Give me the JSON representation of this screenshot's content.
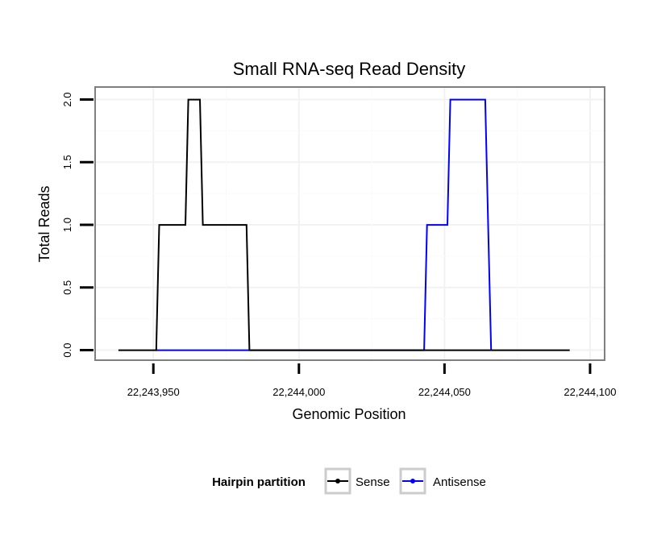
{
  "chart_data": {
    "type": "line",
    "title": "Small RNA-seq Read Density",
    "xlabel": "Genomic Position",
    "ylabel": "Total Reads",
    "xlim": [
      22243930,
      22244105
    ],
    "ylim": [
      -0.08,
      2.1
    ],
    "x_ticks": [
      {
        "value": 22243950,
        "label": "22,243,950"
      },
      {
        "value": 22244000,
        "label": "22,244,000"
      },
      {
        "value": 22244050,
        "label": "22,244,050"
      },
      {
        "value": 22244100,
        "label": "22,244,100"
      }
    ],
    "y_ticks": [
      {
        "value": 0,
        "label": "0.0"
      },
      {
        "value": 0.5,
        "label": "0.5"
      },
      {
        "value": 1,
        "label": "1.0"
      },
      {
        "value": 1.5,
        "label": "1.5"
      },
      {
        "value": 2,
        "label": "2.0"
      }
    ],
    "grid": true,
    "legend": {
      "title": "Hairpin partition",
      "position": "bottom"
    },
    "series": [
      {
        "name": "Sense",
        "color": "#000000",
        "x": [
          22243938,
          22243951,
          22243952,
          22243961,
          22243962,
          22243966,
          22243967,
          22243982,
          22243983,
          22244093
        ],
        "y": [
          0,
          0,
          1,
          1,
          2,
          2,
          1,
          1,
          0,
          0
        ]
      },
      {
        "name": "Antisense",
        "color": "#0000ff",
        "x": [
          22243951,
          22243983,
          22244043,
          22244044,
          22244051,
          22244052,
          22244064,
          22244065,
          22244066
        ],
        "y": [
          0,
          0,
          0,
          1,
          1,
          2,
          2,
          1,
          0
        ]
      }
    ]
  }
}
